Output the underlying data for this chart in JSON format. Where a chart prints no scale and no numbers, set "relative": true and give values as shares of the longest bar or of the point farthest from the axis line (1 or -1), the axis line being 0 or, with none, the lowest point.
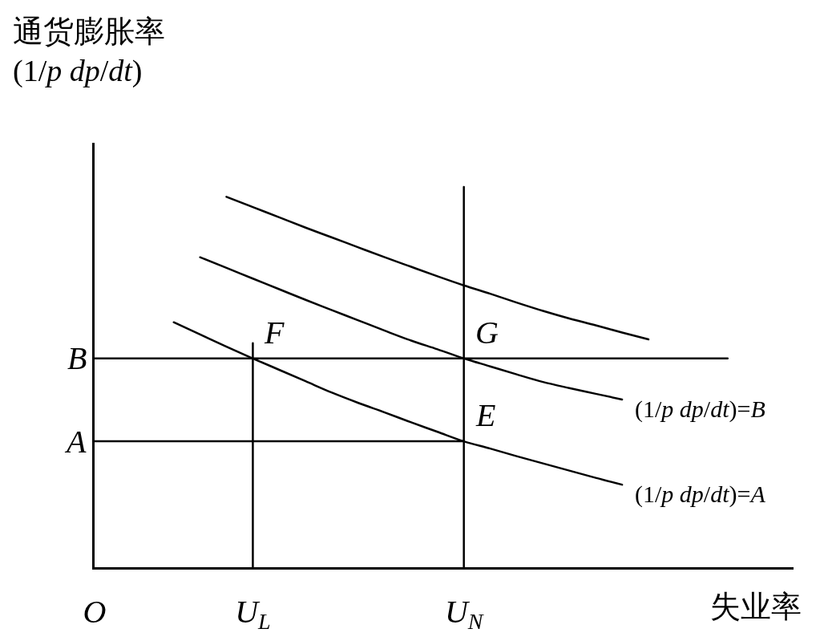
{
  "chart_data": {
    "type": "line",
    "relative": true,
    "ylabel": "通货膨胀率\n(1/p dp/dt)",
    "xlabel": "失业率",
    "categories": [
      "O",
      null,
      null,
      null,
      null,
      null,
      "U$_{L}$",
      null,
      null,
      null,
      null,
      null,
      null,
      null,
      "U$_{N}$",
      null,
      null,
      null,
      null,
      null,
      null,
      null,
      null,
      null,
      null,
      null,
      null
    ],
    "marker": "none",
    "line_style": "solid",
    "series": [
      {
        "color": "#000000",
        "values": [
          null,
          null,
          null,
          null,
          null,
          0.974,
          0.947,
          0.92,
          0.893,
          0.867,
          0.841,
          0.815,
          0.79,
          0.765,
          0.741,
          0.719,
          0.696,
          0.674,
          0.654,
          0.636,
          0.617,
          0.599,
          null,
          null,
          null,
          null,
          null
        ]
      },
      {
        "name": "(1/p dp/dt)=B",
        "color": "#000000",
        "values": [
          null,
          null,
          null,
          null,
          0.815,
          0.787,
          0.759,
          0.731,
          0.703,
          0.676,
          0.649,
          0.622,
          0.596,
          0.573,
          0.549,
          0.528,
          0.507,
          0.487,
          0.471,
          0.456,
          0.441,
          null,
          null,
          null,
          null,
          null,
          null
        ]
      },
      {
        "name": "(1/p dp/dt)=A",
        "color": "#000000",
        "values": [
          null,
          null,
          null,
          0.644,
          0.612,
          0.58,
          0.549,
          0.519,
          0.489,
          0.459,
          0.432,
          0.407,
          0.381,
          0.356,
          0.331,
          0.312,
          0.292,
          0.273,
          0.254,
          0.235,
          0.217,
          null,
          null,
          null,
          null,
          null,
          null
        ]
      },
      {
        "name": "B",
        "color": "#000000",
        "values": [
          0.549,
          0.549,
          0.549,
          0.549,
          0.549,
          0.549,
          0.549,
          0.549,
          0.549,
          0.549,
          0.549,
          0.549,
          0.549,
          0.549,
          0.549,
          0.549,
          0.549,
          0.549,
          0.549,
          0.549,
          0.549,
          0.549,
          0.549,
          0.549,
          0.549,
          null,
          null
        ]
      },
      {
        "name": "A",
        "color": "#000000",
        "values": [
          0.331,
          0.331,
          0.331,
          0.331,
          0.331,
          0.331,
          0.331,
          0.331,
          0.331,
          0.331,
          0.331,
          0.331,
          0.331,
          0.331,
          0.331,
          null,
          null,
          null,
          null,
          null,
          null,
          null,
          null,
          null,
          null,
          null,
          null
        ]
      },
      {
        "color": "#000000",
        "x": [
          "U$_{L}$",
          "U$_{L}$"
        ],
        "values": [
          0,
          0.589
        ]
      },
      {
        "color": "#000000",
        "x": [
          "U$_{N}$",
          "U$_{N}$"
        ],
        "values": [
          0,
          1.0
        ]
      }
    ],
    "annotations": [
      {
        "text": "F",
        "x": "U$_{L}$",
        "y": 0.549
      },
      {
        "text": "G",
        "x": "U$_{N}$",
        "y": 0.549
      },
      {
        "text": "E",
        "x": "U$_{N}$",
        "y": 0.331
      }
    ]
  }
}
